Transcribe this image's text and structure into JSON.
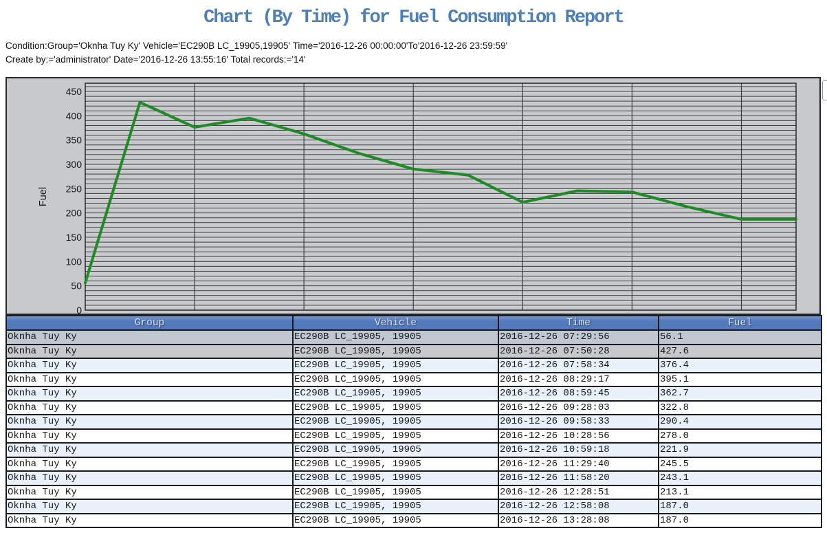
{
  "title": "Chart (By Time) for Fuel Consumption Report",
  "condition_line1": "Condition:Group='Oknha Tuy Ky' Vehicle='EC290B LC_19905,19905' Time='2016-12-26 00:00:00'To'2016-12-26 23:59:59'",
  "condition_line2": "Create by:='administrator' Date='2016-12-26 13:55:16' Total records:='14'",
  "colors": {
    "title_text": "#4e7fb5",
    "chart_background": "#c8c9cb",
    "grid_line": "#3c3e41",
    "grid_highlight": "#dadada",
    "plot_border": "#26282c",
    "series_line": "#1f8b26",
    "table_header_bg": "#5579bd",
    "table_header_text": "#dce4ee",
    "row_selected_1": "#bfc7cf",
    "row_selected_2": "#c7c9cb",
    "row_alternate": "#e9f1fa",
    "row_plain": "#ffffff"
  },
  "chart_data": {
    "type": "line",
    "title": "",
    "xlabel": "",
    "ylabel": "Fuel",
    "ylim": [
      0,
      467
    ],
    "yticks": [
      0,
      50,
      100,
      150,
      200,
      250,
      300,
      350,
      400,
      450
    ],
    "minor_grid_step": 10,
    "vertical_grid_every_n_points": 2,
    "grid": true,
    "legend_position": "none",
    "series": [
      {
        "name": "Fuel",
        "x": [
          "2016-12-26 07:29:56",
          "2016-12-26 07:50:28",
          "2016-12-26 07:58:34",
          "2016-12-26 08:29:17",
          "2016-12-26 08:59:45",
          "2016-12-26 09:28:03",
          "2016-12-26 09:58:33",
          "2016-12-26 10:28:56",
          "2016-12-26 10:59:18",
          "2016-12-26 11:29:40",
          "2016-12-26 11:58:20",
          "2016-12-26 12:28:51",
          "2016-12-26 12:58:08",
          "2016-12-26 13:28:08"
        ],
        "values": [
          56.1,
          427.6,
          376.4,
          395.1,
          362.7,
          322.8,
          290.4,
          278.0,
          221.9,
          245.5,
          243.1,
          213.1,
          187.0,
          187.0
        ]
      }
    ]
  },
  "table": {
    "columns": [
      "Group",
      "Vehicle",
      "Time",
      "Fuel"
    ],
    "rows": [
      {
        "group": "Oknha Tuy Ky",
        "vehicle": "EC290B LC_19905, 19905",
        "time": "2016-12-26 07:29:56",
        "fuel": "56.1"
      },
      {
        "group": "Oknha Tuy Ky",
        "vehicle": "EC290B LC_19905, 19905",
        "time": "2016-12-26 07:50:28",
        "fuel": "427.6"
      },
      {
        "group": "Oknha Tuy Ky",
        "vehicle": "EC290B LC_19905, 19905",
        "time": "2016-12-26 07:58:34",
        "fuel": "376.4"
      },
      {
        "group": "Oknha Tuy Ky",
        "vehicle": "EC290B LC_19905, 19905",
        "time": "2016-12-26 08:29:17",
        "fuel": "395.1"
      },
      {
        "group": "Oknha Tuy Ky",
        "vehicle": "EC290B LC_19905, 19905",
        "time": "2016-12-26 08:59:45",
        "fuel": "362.7"
      },
      {
        "group": "Oknha Tuy Ky",
        "vehicle": "EC290B LC_19905, 19905",
        "time": "2016-12-26 09:28:03",
        "fuel": "322.8"
      },
      {
        "group": "Oknha Tuy Ky",
        "vehicle": "EC290B LC_19905, 19905",
        "time": "2016-12-26 09:58:33",
        "fuel": "290.4"
      },
      {
        "group": "Oknha Tuy Ky",
        "vehicle": "EC290B LC_19905, 19905",
        "time": "2016-12-26 10:28:56",
        "fuel": "278.0"
      },
      {
        "group": "Oknha Tuy Ky",
        "vehicle": "EC290B LC_19905, 19905",
        "time": "2016-12-26 10:59:18",
        "fuel": "221.9"
      },
      {
        "group": "Oknha Tuy Ky",
        "vehicle": "EC290B LC_19905, 19905",
        "time": "2016-12-26 11:29:40",
        "fuel": "245.5"
      },
      {
        "group": "Oknha Tuy Ky",
        "vehicle": "EC290B LC_19905, 19905",
        "time": "2016-12-26 11:58:20",
        "fuel": "243.1"
      },
      {
        "group": "Oknha Tuy Ky",
        "vehicle": "EC290B LC_19905, 19905",
        "time": "2016-12-26 12:28:51",
        "fuel": "213.1"
      },
      {
        "group": "Oknha Tuy Ky",
        "vehicle": "EC290B LC_19905, 19905",
        "time": "2016-12-26 12:58:08",
        "fuel": "187.0"
      },
      {
        "group": "Oknha Tuy Ky",
        "vehicle": "EC290B LC_19905, 19905",
        "time": "2016-12-26 13:28:08",
        "fuel": "187.0"
      }
    ]
  }
}
